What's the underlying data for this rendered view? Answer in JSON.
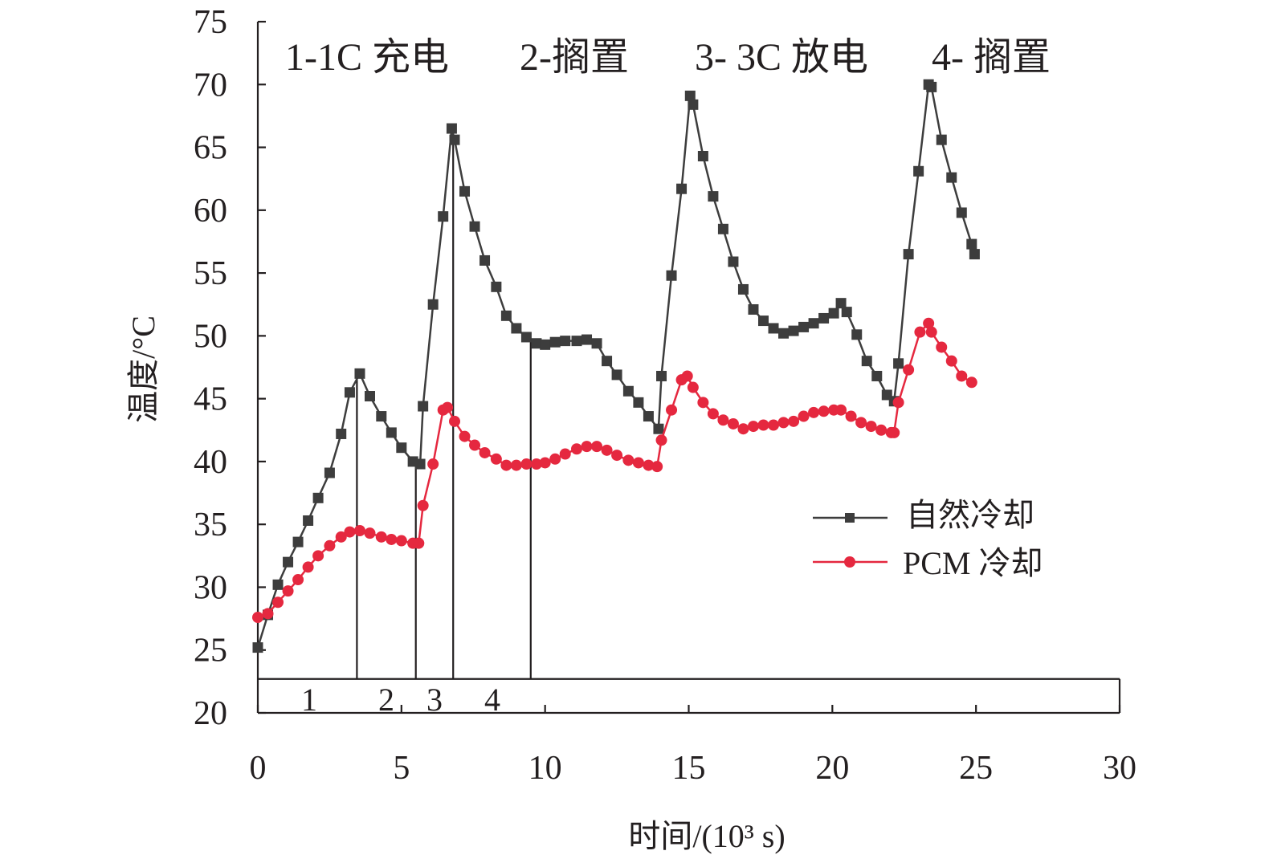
{
  "chart_data": {
    "type": "line",
    "xlabel": "时间/(10³ s)",
    "ylabel": "温度/°C",
    "xlim": [
      0,
      30
    ],
    "ylim": [
      20,
      75
    ],
    "xticks": [
      "0",
      "5",
      "10",
      "15",
      "20",
      "25",
      "30"
    ],
    "yticks": [
      "20",
      "25",
      "30",
      "35",
      "40",
      "45",
      "50",
      "55",
      "60",
      "65",
      "70",
      "75"
    ],
    "grid": false,
    "legend_position": "center-right",
    "phase_labels": [
      "1-1C 充电",
      "2-搁置",
      "3- 3C 放电",
      "4- 搁置"
    ],
    "stage_markers": {
      "labels": [
        "1",
        "2",
        "3",
        "4"
      ],
      "baseline_y": 22.7,
      "dividers_x": [
        3.45,
        5.5,
        6.8,
        9.5
      ],
      "divider_tops_y": [
        47.0,
        40.0,
        65.9,
        49.8
      ]
    },
    "series": [
      {
        "name": "自然冷却",
        "color": "#3d3d3d",
        "marker": "square",
        "points": [
          [
            0.0,
            25.2
          ],
          [
            0.35,
            27.8
          ],
          [
            0.7,
            30.2
          ],
          [
            1.05,
            32.0
          ],
          [
            1.4,
            33.6
          ],
          [
            1.75,
            35.3
          ],
          [
            2.1,
            37.1
          ],
          [
            2.5,
            39.1
          ],
          [
            2.9,
            42.2
          ],
          [
            3.2,
            45.5
          ],
          [
            3.55,
            47.0
          ],
          [
            3.9,
            45.2
          ],
          [
            4.3,
            43.6
          ],
          [
            4.65,
            42.3
          ],
          [
            5.0,
            41.1
          ],
          [
            5.4,
            40.0
          ],
          [
            5.65,
            39.8
          ],
          [
            5.75,
            44.4
          ],
          [
            6.1,
            52.5
          ],
          [
            6.45,
            59.5
          ],
          [
            6.75,
            66.5
          ],
          [
            6.85,
            65.6
          ],
          [
            7.2,
            61.5
          ],
          [
            7.55,
            58.7
          ],
          [
            7.9,
            56.0
          ],
          [
            8.3,
            53.9
          ],
          [
            8.65,
            51.6
          ],
          [
            9.0,
            50.6
          ],
          [
            9.35,
            49.9
          ],
          [
            9.7,
            49.4
          ],
          [
            10.0,
            49.3
          ],
          [
            10.35,
            49.5
          ],
          [
            10.7,
            49.6
          ],
          [
            11.1,
            49.6
          ],
          [
            11.45,
            49.7
          ],
          [
            11.8,
            49.4
          ],
          [
            12.15,
            48.0
          ],
          [
            12.5,
            46.9
          ],
          [
            12.9,
            45.6
          ],
          [
            13.25,
            44.7
          ],
          [
            13.6,
            43.6
          ],
          [
            13.95,
            42.6
          ],
          [
            14.05,
            46.8
          ],
          [
            14.4,
            54.8
          ],
          [
            14.75,
            61.7
          ],
          [
            15.05,
            69.1
          ],
          [
            15.15,
            68.4
          ],
          [
            15.5,
            64.3
          ],
          [
            15.85,
            61.1
          ],
          [
            16.2,
            58.5
          ],
          [
            16.55,
            55.9
          ],
          [
            16.9,
            53.7
          ],
          [
            17.25,
            52.1
          ],
          [
            17.6,
            51.2
          ],
          [
            17.95,
            50.6
          ],
          [
            18.3,
            50.2
          ],
          [
            18.65,
            50.4
          ],
          [
            19.0,
            50.7
          ],
          [
            19.35,
            51.0
          ],
          [
            19.7,
            51.4
          ],
          [
            20.05,
            51.8
          ],
          [
            20.3,
            52.6
          ],
          [
            20.5,
            51.9
          ],
          [
            20.85,
            50.1
          ],
          [
            21.2,
            48.0
          ],
          [
            21.55,
            46.8
          ],
          [
            21.9,
            45.3
          ],
          [
            22.15,
            44.8
          ],
          [
            22.3,
            47.8
          ],
          [
            22.65,
            56.5
          ],
          [
            23.0,
            63.1
          ],
          [
            23.35,
            70.0
          ],
          [
            23.45,
            69.8
          ],
          [
            23.8,
            65.6
          ],
          [
            24.15,
            62.6
          ],
          [
            24.5,
            59.8
          ],
          [
            24.85,
            57.3
          ],
          [
            24.95,
            56.5
          ]
        ]
      },
      {
        "name": "PCM 冷却",
        "color": "#e5283f",
        "marker": "circle",
        "points": [
          [
            0.0,
            27.6
          ],
          [
            0.35,
            27.9
          ],
          [
            0.7,
            28.8
          ],
          [
            1.05,
            29.7
          ],
          [
            1.4,
            30.6
          ],
          [
            1.75,
            31.6
          ],
          [
            2.1,
            32.5
          ],
          [
            2.5,
            33.3
          ],
          [
            2.9,
            34.0
          ],
          [
            3.2,
            34.4
          ],
          [
            3.55,
            34.5
          ],
          [
            3.9,
            34.3
          ],
          [
            4.3,
            34.0
          ],
          [
            4.65,
            33.8
          ],
          [
            5.0,
            33.7
          ],
          [
            5.4,
            33.5
          ],
          [
            5.6,
            33.5
          ],
          [
            5.75,
            36.5
          ],
          [
            6.1,
            39.8
          ],
          [
            6.45,
            44.1
          ],
          [
            6.6,
            44.3
          ],
          [
            6.85,
            43.2
          ],
          [
            7.2,
            42.0
          ],
          [
            7.55,
            41.3
          ],
          [
            7.9,
            40.7
          ],
          [
            8.3,
            40.2
          ],
          [
            8.65,
            39.7
          ],
          [
            9.0,
            39.7
          ],
          [
            9.35,
            39.8
          ],
          [
            9.7,
            39.8
          ],
          [
            10.0,
            39.9
          ],
          [
            10.35,
            40.2
          ],
          [
            10.7,
            40.6
          ],
          [
            11.1,
            41.0
          ],
          [
            11.45,
            41.2
          ],
          [
            11.8,
            41.2
          ],
          [
            12.15,
            40.9
          ],
          [
            12.5,
            40.5
          ],
          [
            12.9,
            40.1
          ],
          [
            13.25,
            39.9
          ],
          [
            13.6,
            39.7
          ],
          [
            13.9,
            39.6
          ],
          [
            14.05,
            41.7
          ],
          [
            14.4,
            44.1
          ],
          [
            14.75,
            46.5
          ],
          [
            14.95,
            46.8
          ],
          [
            15.15,
            45.9
          ],
          [
            15.5,
            44.7
          ],
          [
            15.85,
            43.8
          ],
          [
            16.2,
            43.3
          ],
          [
            16.55,
            43.0
          ],
          [
            16.9,
            42.6
          ],
          [
            17.25,
            42.8
          ],
          [
            17.6,
            42.9
          ],
          [
            17.95,
            42.9
          ],
          [
            18.3,
            43.1
          ],
          [
            18.65,
            43.2
          ],
          [
            19.0,
            43.6
          ],
          [
            19.35,
            43.9
          ],
          [
            19.7,
            44.0
          ],
          [
            20.05,
            44.1
          ],
          [
            20.3,
            44.1
          ],
          [
            20.65,
            43.6
          ],
          [
            21.0,
            43.1
          ],
          [
            21.35,
            42.8
          ],
          [
            21.7,
            42.5
          ],
          [
            22.05,
            42.3
          ],
          [
            22.15,
            42.3
          ],
          [
            22.3,
            44.7
          ],
          [
            22.65,
            47.3
          ],
          [
            23.05,
            50.3
          ],
          [
            23.35,
            51.0
          ],
          [
            23.45,
            50.3
          ],
          [
            23.8,
            49.1
          ],
          [
            24.15,
            48.0
          ],
          [
            24.5,
            46.8
          ],
          [
            24.85,
            46.3
          ]
        ]
      }
    ]
  }
}
